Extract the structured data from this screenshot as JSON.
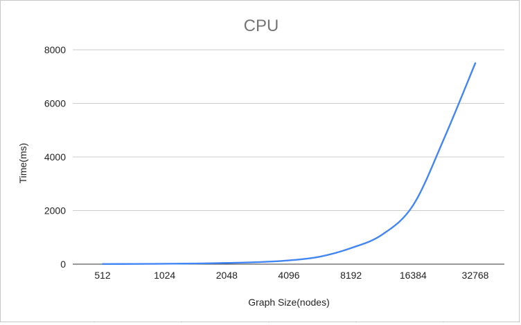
{
  "chart_data": {
    "type": "line",
    "title": "CPU",
    "xlabel": "Graph Size(nodes)",
    "ylabel": "Time(ms)",
    "x": [
      512,
      1024,
      2048,
      4096,
      8192,
      16384,
      32768
    ],
    "x_scale": "log2",
    "categories": [
      "512",
      "1024",
      "2048",
      "4096",
      "8192",
      "16384",
      "32768"
    ],
    "series": [
      {
        "color": "#4285f4",
        "x": [
          512,
          724,
          1024,
          1448,
          2048,
          2896,
          4096,
          5793,
          8192,
          11585,
          16384,
          23170,
          32768
        ],
        "values": [
          5,
          8,
          15,
          25,
          45,
          75,
          140,
          280,
          600,
          1100,
          2200,
          4700,
          7500
        ]
      }
    ],
    "ylim": [
      0,
      8000
    ],
    "yticks": [
      0,
      2000,
      4000,
      6000,
      8000
    ],
    "ytick_labels": [
      "0",
      "2000",
      "4000",
      "6000",
      "8000"
    ],
    "grid": true,
    "legend": "none"
  }
}
